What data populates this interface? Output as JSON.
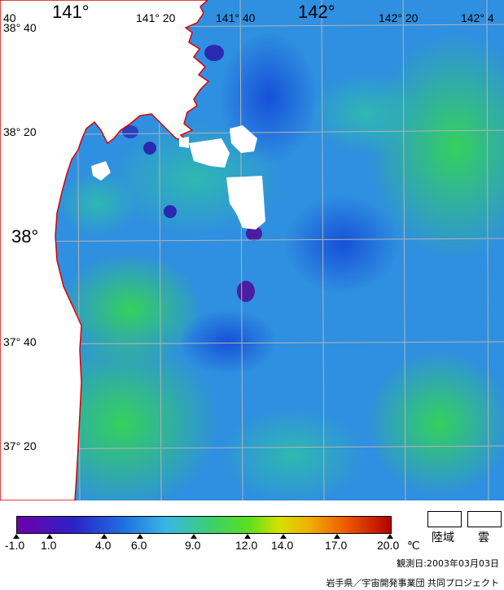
{
  "map": {
    "lon_labels_large": [
      "141°",
      "142°"
    ],
    "lon_labels_small": [
      "141° 20",
      "141° 40",
      "142° 20",
      "142° 4"
    ],
    "lat_labels": [
      "38° 40",
      "38° 20",
      "38°",
      "37° 40",
      "37° 20"
    ],
    "corner_label": "40",
    "colors": {
      "land": "#ffffff",
      "coast": "#dd0000",
      "grid": "#aaaaaa"
    }
  },
  "legend": {
    "unit": "℃",
    "ticks": [
      "-1.0",
      "1.0",
      "4.0",
      "6.0",
      "9.0",
      "12.0",
      "14.0",
      "17.0",
      "20.0"
    ],
    "land_label": "陸域",
    "cloud_label": "雲"
  },
  "observation": "観測日:2003年03月03日",
  "credit": "岩手県／宇宙開発事業団 共同プロジェクト"
}
